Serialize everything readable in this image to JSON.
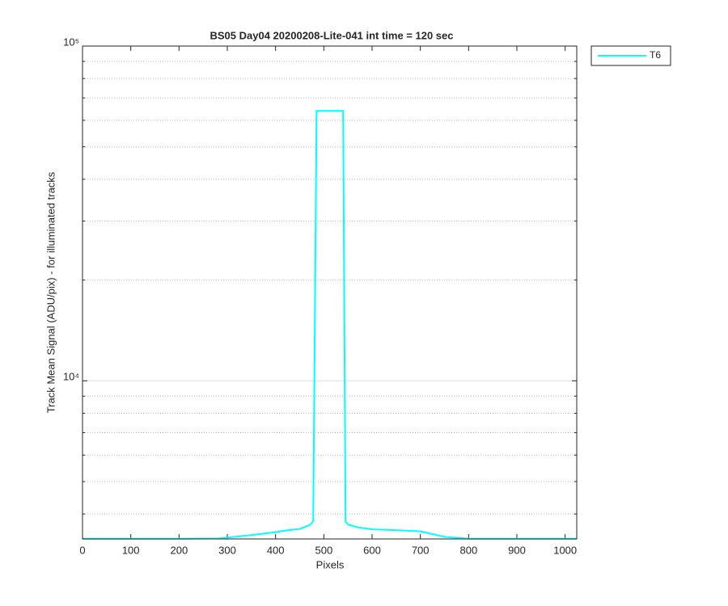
{
  "chart_data": {
    "type": "line",
    "title": "BS05 Day04 20200208-Lite-041 int time = 120 sec",
    "xlabel": "Pixels",
    "ylabel": "Track Mean Signal (ADU/pix) - for illuminated tracks",
    "x": [
      0,
      100,
      200,
      280,
      300,
      350,
      400,
      420,
      450,
      470,
      478,
      485,
      540,
      545,
      550,
      570,
      600,
      650,
      700,
      750,
      800,
      900,
      1024
    ],
    "series": [
      {
        "name": "T6",
        "color": "#00ffff",
        "values": [
          3375,
          3375,
          3375,
          3380,
          3400,
          3460,
          3530,
          3570,
          3610,
          3700,
          3800,
          64000,
          64000,
          3800,
          3720,
          3650,
          3600,
          3580,
          3550,
          3420,
          3375,
          3375,
          3375
        ]
      }
    ],
    "xlim": [
      0,
      1024
    ],
    "xticks": [
      0,
      100,
      200,
      300,
      400,
      500,
      600,
      700,
      800,
      900,
      1000
    ],
    "ylim": [
      3370,
      100000
    ],
    "yscale": "log",
    "yticks": [
      {
        "value": 10000,
        "label": "10⁴"
      },
      {
        "value": 100000,
        "label": "10⁵"
      }
    ],
    "yminor": [
      4000,
      5000,
      6000,
      7000,
      8000,
      9000,
      20000,
      30000,
      40000,
      50000,
      60000,
      70000,
      80000,
      90000
    ],
    "grid": true,
    "legend": "outside-right"
  }
}
